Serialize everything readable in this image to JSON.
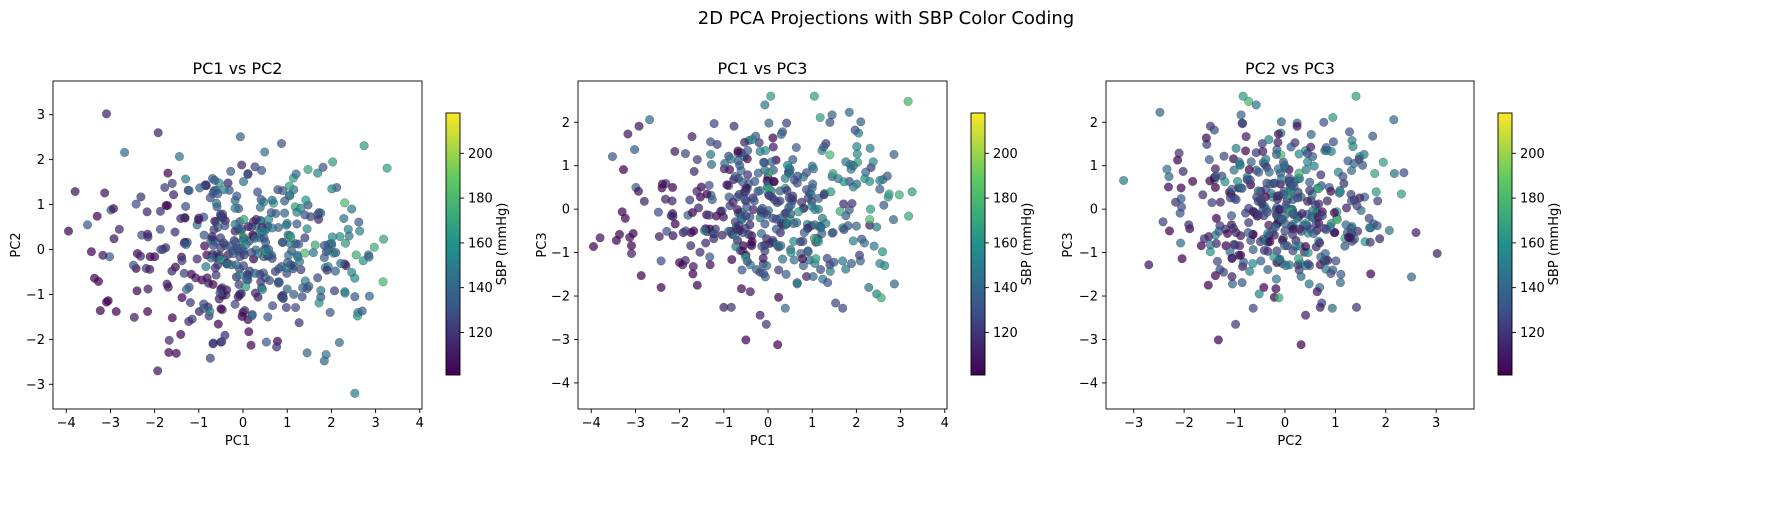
{
  "figure": {
    "suptitle": "2D PCA Projections with SBP Color Coding",
    "colormap": [
      "#440154",
      "#3b528b",
      "#21918c",
      "#5ec962",
      "#fde725"
    ]
  },
  "chart_data": [
    {
      "type": "scatter",
      "title": "PC1 vs PC2",
      "xlabel": "PC1",
      "ylabel": "PC2",
      "xlim": [
        -4.3,
        4.05
      ],
      "ylim": [
        -3.55,
        3.75
      ],
      "xticks": [
        -4,
        -3,
        -2,
        -1,
        0,
        1,
        2,
        3,
        4
      ],
      "yticks": [
        -3,
        -2,
        -1,
        0,
        1,
        2,
        3
      ],
      "colorbar": {
        "label": "SBP (mmHg)",
        "range": [
          101,
          218
        ],
        "ticks": [
          120,
          140,
          160,
          180,
          200
        ]
      },
      "points": []
    },
    {
      "type": "scatter",
      "title": "PC1 vs PC3",
      "xlabel": "PC1",
      "ylabel": "PC3",
      "xlim": [
        -4.3,
        4.05
      ],
      "ylim": [
        -4.6,
        2.95
      ],
      "xticks": [
        -4,
        -3,
        -2,
        -1,
        0,
        1,
        2,
        3,
        4
      ],
      "yticks": [
        -4,
        -3,
        -2,
        -1,
        0,
        1,
        2
      ],
      "colorbar": {
        "label": "SBP (mmHg)",
        "range": [
          101,
          218
        ],
        "ticks": [
          120,
          140,
          160,
          180,
          200
        ]
      },
      "points": []
    },
    {
      "type": "scatter",
      "title": "PC2 vs PC3",
      "xlabel": "PC2",
      "ylabel": "PC3",
      "xlim": [
        -3.55,
        3.75
      ],
      "ylim": [
        -4.6,
        2.95
      ],
      "xticks": [
        -3,
        -2,
        -1,
        0,
        1,
        2,
        3
      ],
      "yticks": [
        -4,
        -3,
        -2,
        -1,
        0,
        1,
        2
      ],
      "colorbar": {
        "label": "SBP (mmHg)",
        "range": [
          101,
          218
        ],
        "ticks": [
          120,
          140,
          160,
          180,
          200
        ]
      },
      "points": []
    }
  ]
}
